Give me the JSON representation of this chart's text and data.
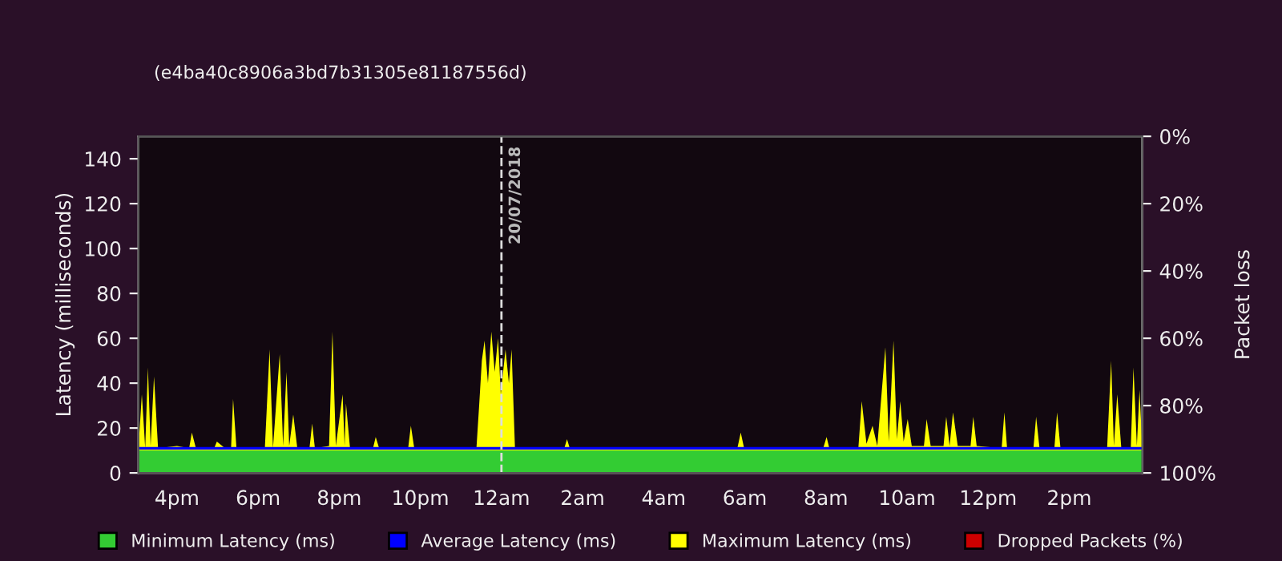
{
  "chart_data": {
    "type": "area",
    "subtitle": "(e4ba40c8906a3bd7b31305e81187556d)",
    "ylabel": "Latency (milliseconds)",
    "y2label": "Packet loss",
    "xlim": [
      "2018-07-19T15:03",
      "2018-07-20T15:48"
    ],
    "xticks": [
      {
        "value": "2018-07-19T16:00",
        "label": "4pm"
      },
      {
        "value": "2018-07-19T18:00",
        "label": "6pm"
      },
      {
        "value": "2018-07-19T20:00",
        "label": "8pm"
      },
      {
        "value": "2018-07-19T22:00",
        "label": "10pm"
      },
      {
        "value": "2018-07-20T00:00",
        "label": "12am"
      },
      {
        "value": "2018-07-20T02:00",
        "label": "2am"
      },
      {
        "value": "2018-07-20T04:00",
        "label": "4am"
      },
      {
        "value": "2018-07-20T06:00",
        "label": "6am"
      },
      {
        "value": "2018-07-20T08:00",
        "label": "8am"
      },
      {
        "value": "2018-07-20T10:00",
        "label": "10am"
      },
      {
        "value": "2018-07-20T12:00",
        "label": "12pm"
      },
      {
        "value": "2018-07-20T14:00",
        "label": "2pm"
      }
    ],
    "ylim": [
      0,
      150
    ],
    "yticks": [
      0,
      20,
      40,
      60,
      80,
      100,
      120,
      140
    ],
    "y2lim": [
      100,
      0
    ],
    "y2ticks": [
      {
        "value": 0,
        "label": "0%"
      },
      {
        "value": 20,
        "label": "20%"
      },
      {
        "value": 40,
        "label": "40%"
      },
      {
        "value": 60,
        "label": "60%"
      },
      {
        "value": 80,
        "label": "80%"
      },
      {
        "value": 100,
        "label": "100%"
      }
    ],
    "ref_lines": [
      {
        "axis": "x",
        "value": "2018-07-20T00:00",
        "label": "20/07/2018",
        "color": "#dddddd",
        "line_style": "dashed"
      }
    ],
    "legend": "bottom",
    "grid": false,
    "series": [
      {
        "name": "Minimum Latency (ms)",
        "color": "#33cc33",
        "x": [
          "2018-07-19T15:03",
          "2018-07-20T15:48"
        ],
        "values": [
          10,
          10
        ]
      },
      {
        "name": "Average Latency (ms)",
        "color": "#0000ff",
        "type": "line",
        "x": [
          "2018-07-19T15:03",
          "2018-07-20T15:48"
        ],
        "values": [
          11,
          11
        ]
      },
      {
        "name": "Maximum Latency (ms)",
        "color": "#ffff00",
        "x": [
          "2018-07-19T15:03",
          "2018-07-19T15:08",
          "2018-07-19T15:13",
          "2018-07-19T15:17",
          "2018-07-19T15:21",
          "2018-07-19T15:26",
          "2018-07-19T15:32",
          "2018-07-19T16:00",
          "2018-07-19T16:18",
          "2018-07-19T16:22",
          "2018-07-19T16:28",
          "2018-07-19T16:55",
          "2018-07-19T16:59",
          "2018-07-19T17:11",
          "2018-07-19T17:20",
          "2018-07-19T17:23",
          "2018-07-19T17:28",
          "2018-07-19T18:10",
          "2018-07-19T18:17",
          "2018-07-19T18:22",
          "2018-07-19T18:32",
          "2018-07-19T18:37",
          "2018-07-19T18:42",
          "2018-07-19T18:46",
          "2018-07-19T18:52",
          "2018-07-19T18:58",
          "2018-07-19T19:16",
          "2018-07-19T19:20",
          "2018-07-19T19:24",
          "2018-07-19T19:45",
          "2018-07-19T19:50",
          "2018-07-19T19:55",
          "2018-07-19T20:05",
          "2018-07-19T20:08",
          "2018-07-19T20:10",
          "2018-07-19T20:16",
          "2018-07-19T20:50",
          "2018-07-19T20:54",
          "2018-07-19T20:59",
          "2018-07-19T21:42",
          "2018-07-19T21:46",
          "2018-07-19T21:51",
          "2018-07-19T23:23",
          "2018-07-19T23:27",
          "2018-07-19T23:31",
          "2018-07-19T23:35",
          "2018-07-19T23:40",
          "2018-07-19T23:45",
          "2018-07-19T23:50",
          "2018-07-19T23:55",
          "2018-07-19T23:59",
          "2018-07-20T00:06",
          "2018-07-20T00:11",
          "2018-07-20T00:15",
          "2018-07-20T00:20",
          "2018-07-20T01:33",
          "2018-07-20T01:37",
          "2018-07-20T01:41",
          "2018-07-20T05:49",
          "2018-07-20T05:54",
          "2018-07-20T05:59",
          "2018-07-20T07:56",
          "2018-07-20T08:01",
          "2018-07-20T08:05",
          "2018-07-20T08:48",
          "2018-07-20T08:53",
          "2018-07-20T09:00",
          "2018-07-20T09:09",
          "2018-07-20T09:16",
          "2018-07-20T09:28",
          "2018-07-20T09:33",
          "2018-07-20T09:40",
          "2018-07-20T09:45",
          "2018-07-20T09:50",
          "2018-07-20T09:55",
          "2018-07-20T10:01",
          "2018-07-20T10:07",
          "2018-07-20T10:25",
          "2018-07-20T10:29",
          "2018-07-20T10:35",
          "2018-07-20T10:54",
          "2018-07-20T10:58",
          "2018-07-20T11:03",
          "2018-07-20T11:08",
          "2018-07-20T11:15",
          "2018-07-20T11:34",
          "2018-07-20T11:38",
          "2018-07-20T11:43",
          "2018-07-20T12:20",
          "2018-07-20T12:24",
          "2018-07-20T12:28",
          "2018-07-20T13:07",
          "2018-07-20T13:11",
          "2018-07-20T13:16",
          "2018-07-20T13:38",
          "2018-07-20T13:42",
          "2018-07-20T13:47",
          "2018-07-20T14:56",
          "2018-07-20T15:02",
          "2018-07-20T15:06",
          "2018-07-20T15:11",
          "2018-07-20T15:17",
          "2018-07-20T15:31",
          "2018-07-20T15:35",
          "2018-07-20T15:40",
          "2018-07-20T15:44",
          "2018-07-20T15:48"
        ],
        "values": [
          11,
          35,
          11,
          47,
          12,
          43,
          11,
          12,
          11,
          18,
          11,
          11,
          14,
          11,
          11,
          33,
          11,
          11,
          55,
          11,
          53,
          12,
          45,
          12,
          26,
          11,
          11,
          22,
          11,
          12,
          63,
          12,
          35,
          12,
          31,
          11,
          11,
          16,
          11,
          11,
          21,
          11,
          11,
          30,
          50,
          59,
          40,
          63,
          45,
          60,
          35,
          55,
          40,
          55,
          11,
          11,
          15,
          11,
          11,
          18,
          11,
          11,
          16,
          11,
          11,
          32,
          13,
          21,
          12,
          56,
          14,
          59,
          15,
          32,
          14,
          24,
          12,
          12,
          24,
          12,
          12,
          25,
          12,
          27,
          12,
          12,
          25,
          12,
          11,
          27,
          11,
          11,
          25,
          11,
          11,
          27,
          11,
          11,
          50,
          12,
          35,
          11,
          11,
          47,
          12,
          37,
          11
        ]
      },
      {
        "name": "Dropped Packets (%)",
        "color": "#cc0000"
      }
    ]
  }
}
